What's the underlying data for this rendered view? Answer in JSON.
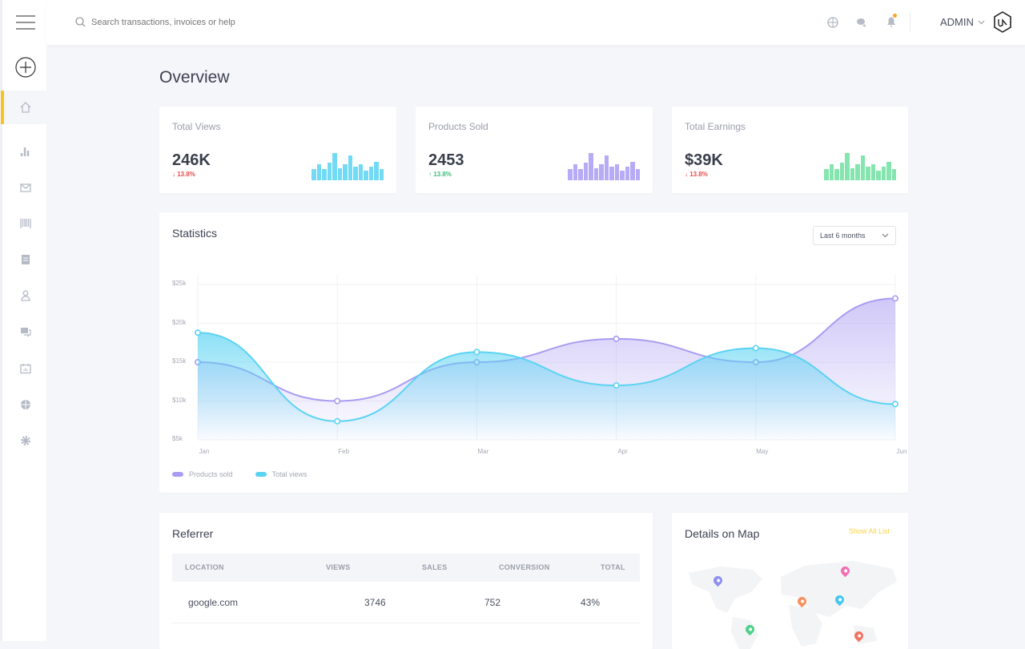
{
  "header": {
    "search_placeholder": "Search transactions, invoices or help",
    "user": "ADMIN",
    "logo": "UA",
    "notification_color": "#f5a623"
  },
  "sidebar": {
    "accent": "#f7c324",
    "items": [
      {
        "icon": "home-icon",
        "active": true
      },
      {
        "icon": "bar-chart-icon"
      },
      {
        "icon": "mail-icon"
      },
      {
        "icon": "barcode-icon"
      },
      {
        "icon": "document-icon"
      },
      {
        "icon": "user-icon"
      },
      {
        "icon": "chat-icon"
      },
      {
        "icon": "calendar-icon"
      },
      {
        "icon": "globe-icon"
      },
      {
        "icon": "gear-icon"
      }
    ]
  },
  "page": {
    "title": "Overview"
  },
  "stats": [
    {
      "label": "Total Views",
      "value": "246K",
      "change": "13.8%",
      "direction": "down",
      "color": "#5bd3f3",
      "bars": [
        40,
        60,
        40,
        65,
        100,
        45,
        60,
        90,
        50,
        60,
        35,
        50,
        68,
        40
      ]
    },
    {
      "label": "Products Sold",
      "value": "2453",
      "change": "13.8%",
      "direction": "up",
      "color": "#a99cf2",
      "bars": [
        40,
        60,
        40,
        65,
        100,
        45,
        60,
        90,
        50,
        60,
        35,
        50,
        68,
        40
      ]
    },
    {
      "label": "Total Earnings",
      "value": "$39K",
      "change": "13.8%",
      "direction": "down",
      "color": "#6fe0a0",
      "bars": [
        40,
        60,
        40,
        65,
        100,
        45,
        60,
        90,
        50,
        60,
        35,
        50,
        68,
        40
      ]
    }
  ],
  "statistics": {
    "title": "Statistics",
    "range_select": "Last 6 months",
    "chart_data": {
      "type": "area",
      "categories": [
        "Jan",
        "Feb",
        "Mar",
        "Apr",
        "May",
        "Jun"
      ],
      "y_ticks": [
        "$25k",
        "$20k",
        "$15k",
        "$10k",
        "$5k"
      ],
      "ylim": [
        5000,
        25000
      ],
      "grid": true,
      "legend": "bottom-left",
      "series": [
        {
          "name": "Products sold",
          "color": "#a99cf2",
          "values": [
            15000,
            10000,
            15000,
            18000,
            15000,
            23200
          ]
        },
        {
          "name": "Total views",
          "color": "#5bd3f3",
          "values": [
            18800,
            7400,
            16300,
            12000,
            16800,
            9600
          ]
        }
      ]
    }
  },
  "referrer": {
    "title": "Referrer",
    "columns": [
      "LOCATION",
      "VIEWS",
      "SALES",
      "CONVERSION",
      "TOTAL"
    ],
    "rows": [
      {
        "location": "google.com",
        "views": "3746",
        "sales": "752",
        "conversion": "43%",
        "total": ""
      }
    ]
  },
  "map": {
    "title": "Details on Map",
    "link": "Show All List",
    "pins": [
      "#8f8ff0",
      "#f06fb5",
      "#f5925e",
      "#45c7ef",
      "#4fd08a",
      "#f27460"
    ]
  }
}
